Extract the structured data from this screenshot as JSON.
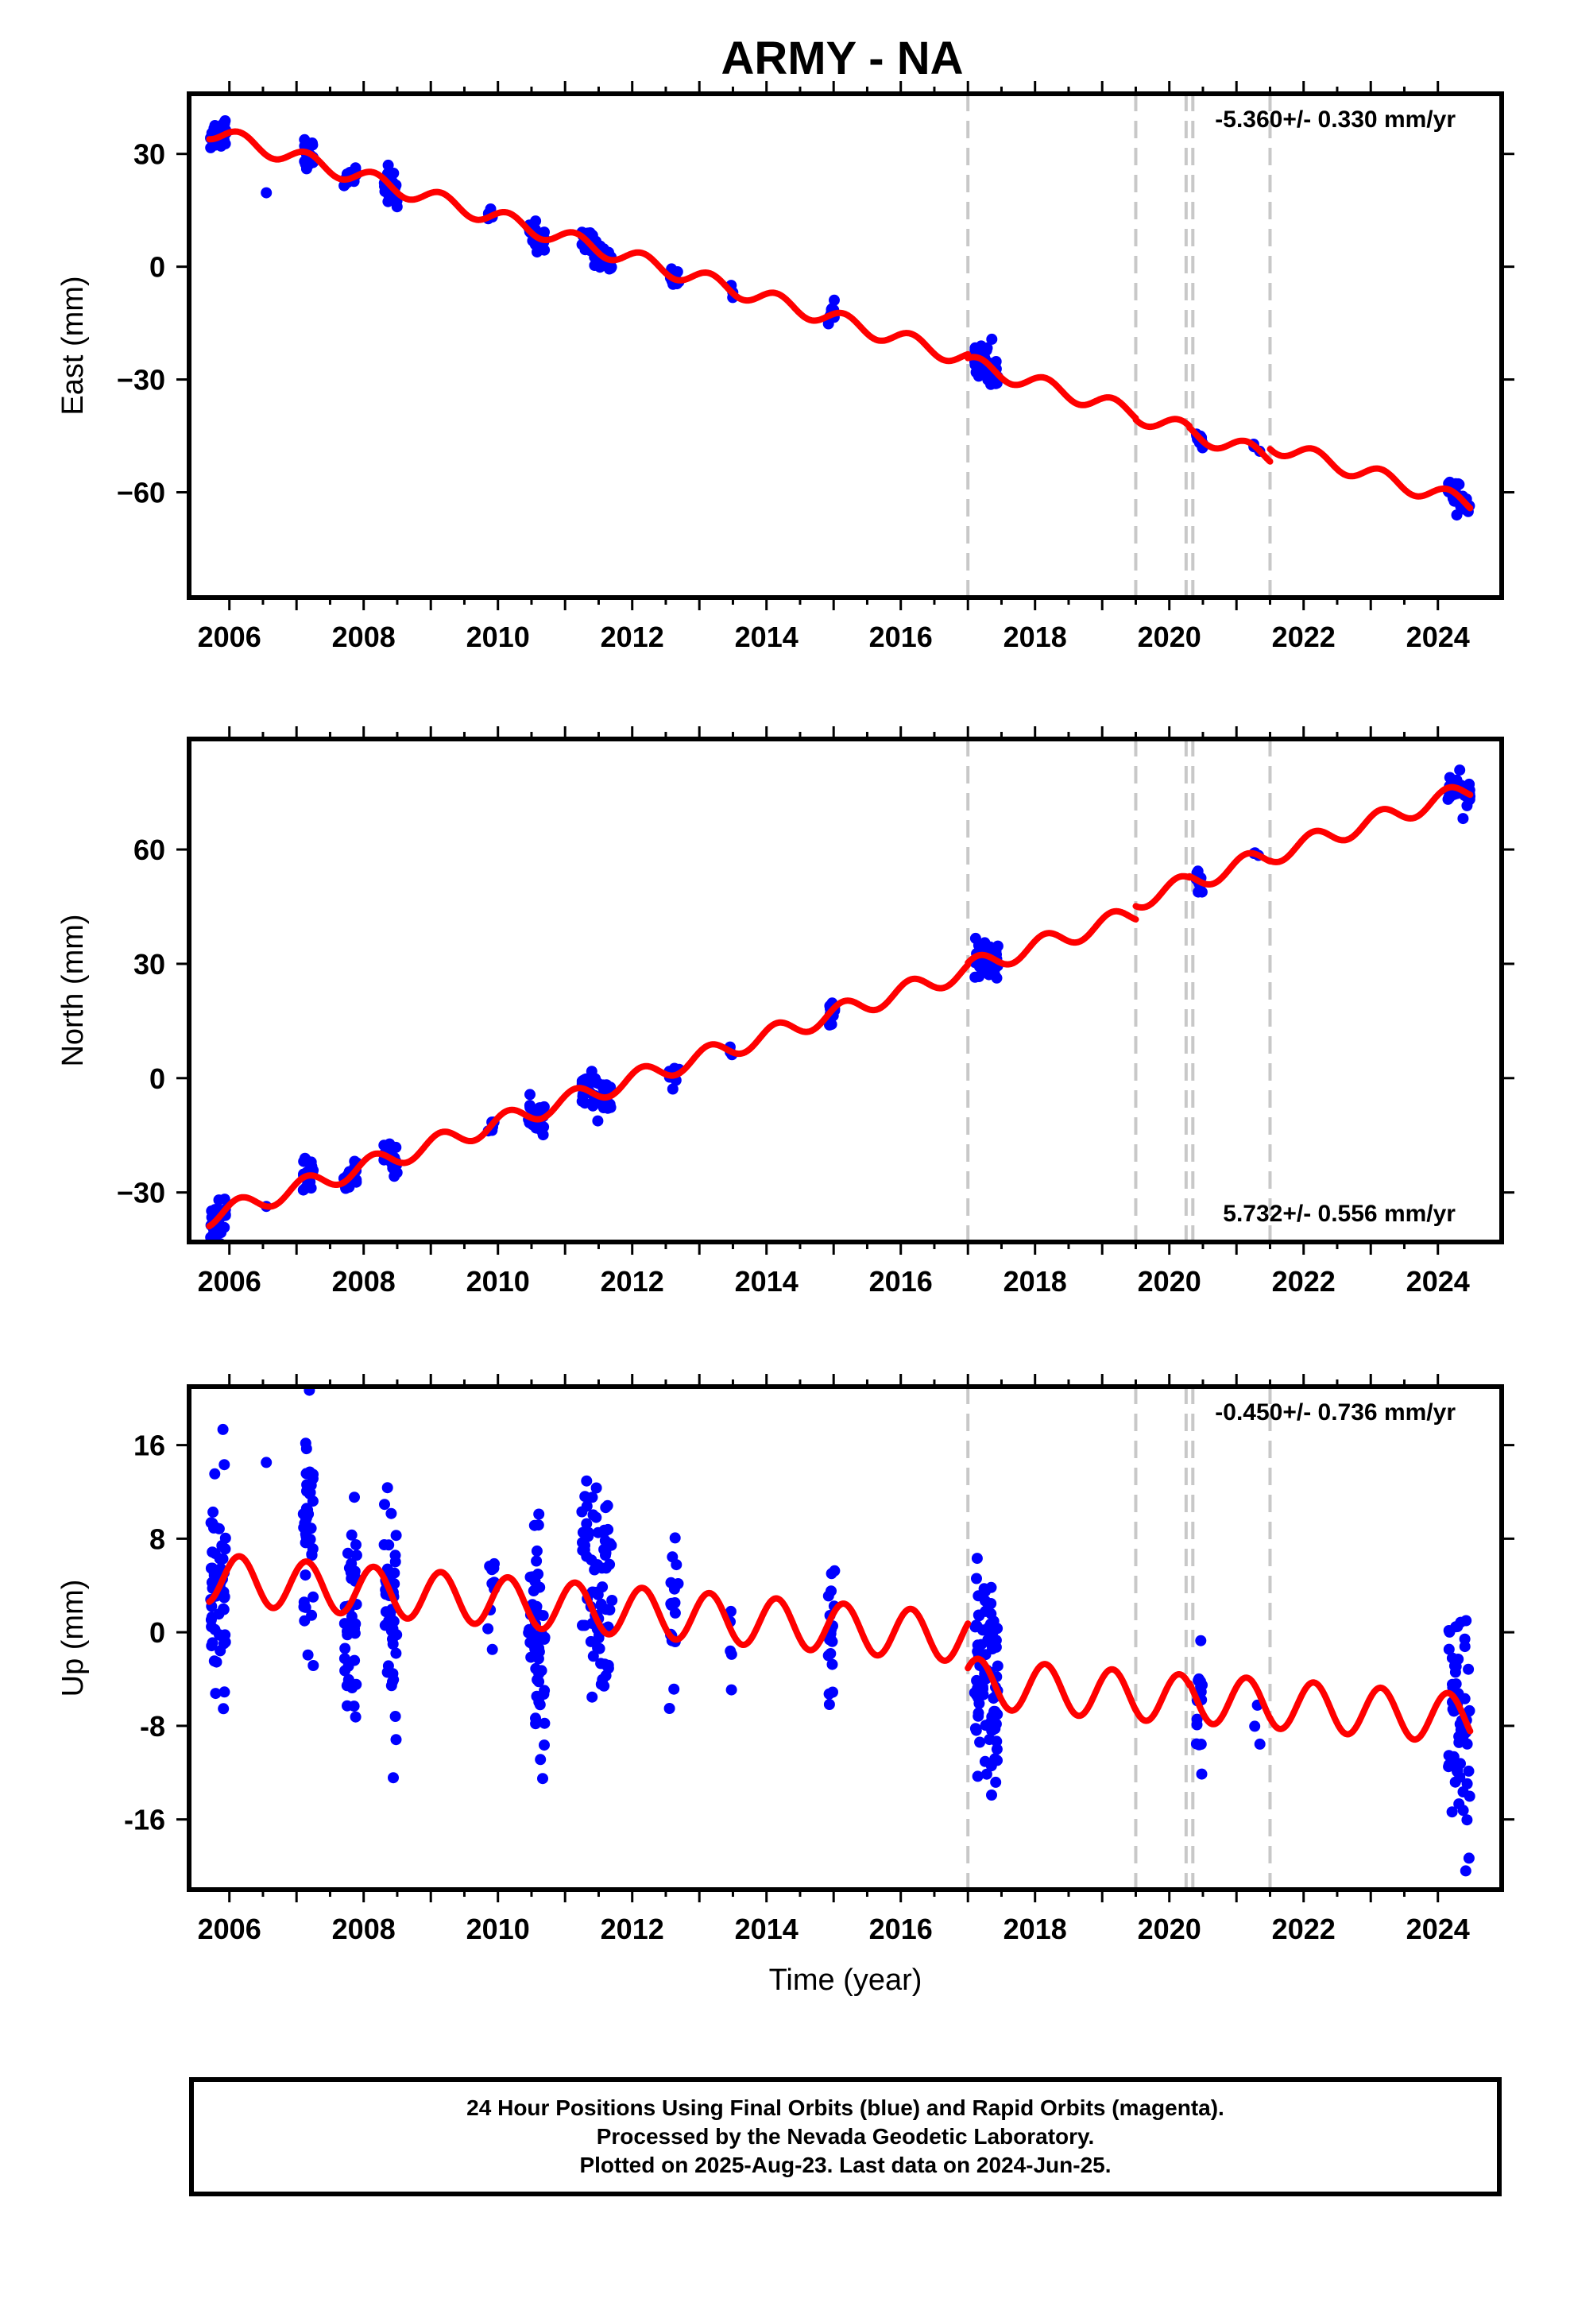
{
  "title": "ARMY - NA",
  "chart_data": [
    {
      "type": "scatter",
      "panel": "east",
      "ylabel": "East (mm)",
      "xlim": [
        2005.4,
        2024.95
      ],
      "ylim": [
        -88,
        46
      ],
      "yticks": [
        30,
        0,
        -30,
        -60
      ],
      "xticks": [
        2006,
        2008,
        2010,
        2012,
        2014,
        2016,
        2018,
        2020,
        2022,
        2024
      ],
      "xticklabels": [
        "2006",
        "2008",
        "2010",
        "2012",
        "2014",
        "2016",
        "2018",
        "2020",
        "2022",
        "2024"
      ],
      "yticklabels": [
        "30",
        "0",
        "−30",
        "−60"
      ],
      "rate_label": "-5.360+/- 0.330 mm/yr",
      "rate_position": "top-right",
      "rate": -5.36,
      "annual_amplitude": 2.2,
      "model_color": "#ff0000",
      "point_color": "#0000ff",
      "model_offsets": [
        {
          "x": 2005.7,
          "y": 36
        },
        {
          "x": 2017.0,
          "y": -25.6
        },
        {
          "x": 2019.5,
          "y": -39.4
        },
        {
          "x": 2020.3,
          "y": -44.1
        },
        {
          "x": 2021.5,
          "y": -47.2
        }
      ],
      "clusters": [
        {
          "x0": 2005.72,
          "x1": 2005.95,
          "n": 45,
          "spread": 2.0,
          "bias": 1.0
        },
        {
          "x0": 2006.55,
          "x1": 2006.6,
          "n": 1,
          "spread": 0,
          "bias": -10
        },
        {
          "x0": 2007.1,
          "x1": 2007.25,
          "n": 25,
          "spread": 2.2,
          "bias": 0
        },
        {
          "x0": 2007.7,
          "x1": 2007.9,
          "n": 22,
          "spread": 1.5,
          "bias": 0
        },
        {
          "x0": 2008.3,
          "x1": 2008.5,
          "n": 28,
          "spread": 2.2,
          "bias": -1
        },
        {
          "x0": 2009.85,
          "x1": 2009.95,
          "n": 6,
          "spread": 1.0,
          "bias": 0
        },
        {
          "x0": 2010.45,
          "x1": 2010.7,
          "n": 35,
          "spread": 1.6,
          "bias": 0
        },
        {
          "x0": 2011.25,
          "x1": 2011.7,
          "n": 55,
          "spread": 2.0,
          "bias": 0
        },
        {
          "x0": 2012.55,
          "x1": 2012.7,
          "n": 10,
          "spread": 1.2,
          "bias": 0
        },
        {
          "x0": 2013.45,
          "x1": 2013.5,
          "n": 3,
          "spread": 1.0,
          "bias": 0
        },
        {
          "x0": 2014.92,
          "x1": 2015.02,
          "n": 10,
          "spread": 1.2,
          "bias": 0
        },
        {
          "x0": 2017.1,
          "x1": 2017.45,
          "n": 60,
          "spread": 2.0,
          "bias": 0
        },
        {
          "x0": 2020.4,
          "x1": 2020.5,
          "n": 12,
          "spread": 1.0,
          "bias": 0
        },
        {
          "x0": 2021.25,
          "x1": 2021.35,
          "n": 3,
          "spread": 0.5,
          "bias": 0
        },
        {
          "x0": 2024.15,
          "x1": 2024.48,
          "n": 45,
          "spread": 1.6,
          "bias": 0
        }
      ]
    },
    {
      "type": "scatter",
      "panel": "north",
      "ylabel": "North (mm)",
      "xlim": [
        2005.4,
        2024.95
      ],
      "ylim": [
        -43,
        89
      ],
      "yticks": [
        60,
        30,
        0,
        -30
      ],
      "xticks": [
        2006,
        2008,
        2010,
        2012,
        2014,
        2016,
        2018,
        2020,
        2022,
        2024
      ],
      "xticklabels": [
        "2006",
        "2008",
        "2010",
        "2012",
        "2014",
        "2016",
        "2018",
        "2020",
        "2022",
        "2024"
      ],
      "yticklabels": [
        "60",
        "30",
        "0",
        "−30"
      ],
      "rate_label": "5.732+/- 0.556 mm/yr",
      "rate_position": "bottom-right",
      "rate": 5.732,
      "annual_amplitude": 2.5,
      "model_color": "#ff0000",
      "point_color": "#0000ff",
      "model_offsets": [
        {
          "x": 2005.7,
          "y": -36.5
        },
        {
          "x": 2017.0,
          "y": 28.8
        },
        {
          "x": 2019.5,
          "y": 46.6
        },
        {
          "x": 2020.3,
          "y": 51.5
        },
        {
          "x": 2021.5,
          "y": 58.5
        }
      ],
      "clusters": [
        {
          "x0": 2005.72,
          "x1": 2005.95,
          "n": 45,
          "spread": 2.2,
          "bias": 0
        },
        {
          "x0": 2006.55,
          "x1": 2006.6,
          "n": 1,
          "spread": 0,
          "bias": 0
        },
        {
          "x0": 2007.1,
          "x1": 2007.25,
          "n": 25,
          "spread": 1.8,
          "bias": 0
        },
        {
          "x0": 2007.7,
          "x1": 2007.9,
          "n": 22,
          "spread": 1.6,
          "bias": 0
        },
        {
          "x0": 2008.3,
          "x1": 2008.5,
          "n": 28,
          "spread": 2.0,
          "bias": 0
        },
        {
          "x0": 2009.85,
          "x1": 2009.95,
          "n": 6,
          "spread": 1.0,
          "bias": 0
        },
        {
          "x0": 2010.45,
          "x1": 2010.7,
          "n": 35,
          "spread": 2.0,
          "bias": 0
        },
        {
          "x0": 2011.25,
          "x1": 2011.7,
          "n": 55,
          "spread": 2.2,
          "bias": 0
        },
        {
          "x0": 2012.55,
          "x1": 2012.7,
          "n": 10,
          "spread": 1.4,
          "bias": 0
        },
        {
          "x0": 2013.45,
          "x1": 2013.5,
          "n": 3,
          "spread": 1.2,
          "bias": 0
        },
        {
          "x0": 2014.92,
          "x1": 2015.02,
          "n": 10,
          "spread": 1.4,
          "bias": 0
        },
        {
          "x0": 2017.1,
          "x1": 2017.45,
          "n": 60,
          "spread": 2.5,
          "bias": 0
        },
        {
          "x0": 2020.4,
          "x1": 2020.5,
          "n": 12,
          "spread": 1.4,
          "bias": 0
        },
        {
          "x0": 2021.25,
          "x1": 2021.35,
          "n": 3,
          "spread": 0.6,
          "bias": 0
        },
        {
          "x0": 2024.15,
          "x1": 2024.48,
          "n": 45,
          "spread": 1.8,
          "bias": 0
        }
      ]
    },
    {
      "type": "scatter",
      "panel": "up",
      "ylabel": "Up (mm)",
      "xlim": [
        2005.4,
        2024.95
      ],
      "ylim": [
        -22,
        21
      ],
      "yticks": [
        16,
        8,
        0,
        -8,
        -16
      ],
      "xticks": [
        2006,
        2008,
        2010,
        2012,
        2014,
        2016,
        2018,
        2020,
        2022,
        2024
      ],
      "xticklabels": [
        "2006",
        "2008",
        "2010",
        "2012",
        "2014",
        "2016",
        "2018",
        "2020",
        "2022",
        "2024"
      ],
      "yticklabels": [
        "16",
        "8",
        "0",
        "-8",
        "-16"
      ],
      "xlabel": "Time (year)",
      "rate_label": "-0.450+/- 0.736 mm/yr",
      "rate_position": "top-right",
      "rate": -0.45,
      "annual_amplitude": 2.1,
      "model_color": "#ff0000",
      "point_color": "#0000ff",
      "model_offsets": [
        {
          "x": 2005.7,
          "y": 4.6
        },
        {
          "x": 2017.0,
          "y": -4.3
        },
        {
          "x": 2019.5,
          "y": -5.4
        },
        {
          "x": 2020.3,
          "y": -5.6
        },
        {
          "x": 2021.5,
          "y": -6.1
        }
      ],
      "clusters": [
        {
          "x0": 2005.72,
          "x1": 2005.95,
          "n": 55,
          "spread": 5.0,
          "bias": 0
        },
        {
          "x0": 2006.55,
          "x1": 2006.6,
          "n": 1,
          "spread": 0,
          "bias": 12
        },
        {
          "x0": 2007.1,
          "x1": 2007.25,
          "n": 40,
          "spread": 5.0,
          "bias": 2
        },
        {
          "x0": 2007.7,
          "x1": 2007.9,
          "n": 40,
          "spread": 5.5,
          "bias": -1
        },
        {
          "x0": 2008.3,
          "x1": 2008.5,
          "n": 45,
          "spread": 5.0,
          "bias": -1
        },
        {
          "x0": 2009.85,
          "x1": 2009.95,
          "n": 10,
          "spread": 3.0,
          "bias": 1
        },
        {
          "x0": 2010.45,
          "x1": 2010.7,
          "n": 50,
          "spread": 4.5,
          "bias": -1
        },
        {
          "x0": 2011.25,
          "x1": 2011.7,
          "n": 80,
          "spread": 5.0,
          "bias": 2
        },
        {
          "x0": 2012.55,
          "x1": 2012.7,
          "n": 18,
          "spread": 4.0,
          "bias": 1
        },
        {
          "x0": 2013.45,
          "x1": 2013.5,
          "n": 5,
          "spread": 2.5,
          "bias": -4
        },
        {
          "x0": 2014.92,
          "x1": 2015.02,
          "n": 18,
          "spread": 4.0,
          "bias": -1
        },
        {
          "x0": 2017.1,
          "x1": 2017.45,
          "n": 90,
          "spread": 4.5,
          "bias": -1
        },
        {
          "x0": 2020.4,
          "x1": 2020.5,
          "n": 16,
          "spread": 3.0,
          "bias": -1
        },
        {
          "x0": 2021.25,
          "x1": 2021.35,
          "n": 3,
          "spread": 1.2,
          "bias": -4
        },
        {
          "x0": 2024.15,
          "x1": 2024.48,
          "n": 65,
          "spread": 4.5,
          "bias": -1
        }
      ]
    }
  ],
  "breaks": [
    2017.0,
    2019.5,
    2020.25,
    2020.35,
    2021.5
  ],
  "break_color": "#c8c8c8",
  "footer": {
    "line1": "24 Hour Positions Using Final Orbits (blue) and Rapid Orbits (magenta).",
    "line2": "Processed by the Nevada Geodetic Laboratory.",
    "line3": "Plotted on 2025-Aug-23. Last data on 2024-Jun-25."
  }
}
